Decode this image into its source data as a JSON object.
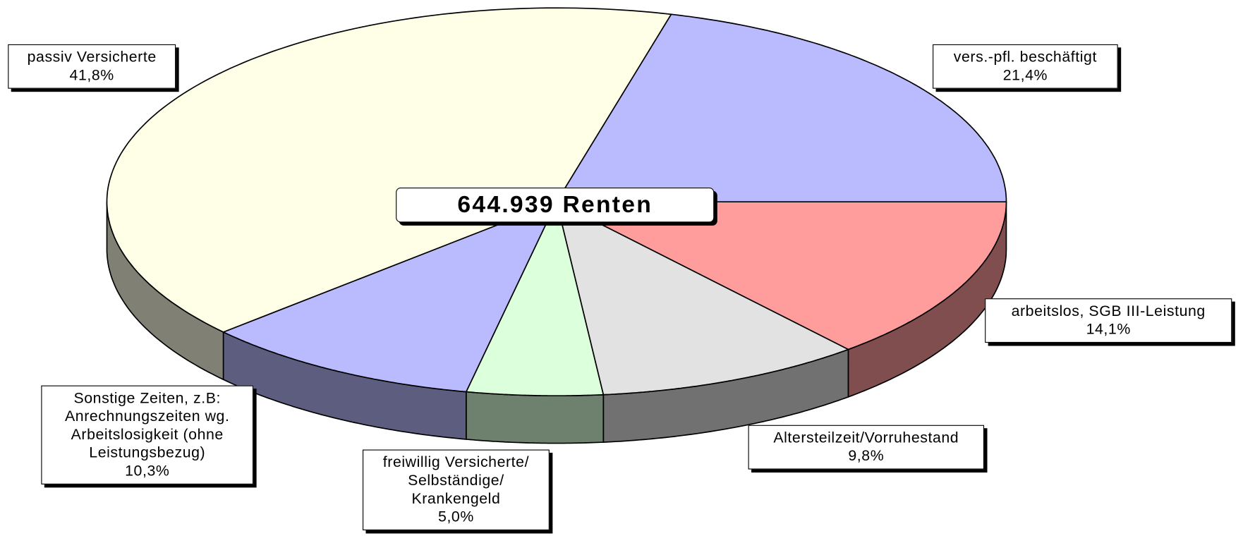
{
  "chart_data": {
    "type": "pie",
    "title": "644.939 Renten",
    "categories": [
      "arbeitslos, SGB III-Leistung",
      "Altersteilzeit/Vorruhestand",
      "freiwillig Versicherte/\nSelbständige/\nKrankengeld",
      "Sonstige Zeiten, z.B:\nAnrechnungszeiten wg.\nArbeitslosigkeit (ohne\nLeistungsbezug)",
      "passiv Versicherte",
      "vers.-pfl. beschäftigt"
    ],
    "values": [
      14.1,
      9.8,
      5.0,
      10.3,
      41.8,
      21.4
    ],
    "value_labels": [
      "14,1%",
      "9,8%",
      "5,0%",
      "10,3%",
      "41,8%",
      "21,4%"
    ],
    "colors": [
      "#ff9c9c",
      "#e2e2e2",
      "#dcffdc",
      "#babaff",
      "#ffffe8",
      "#babaff"
    ]
  }
}
